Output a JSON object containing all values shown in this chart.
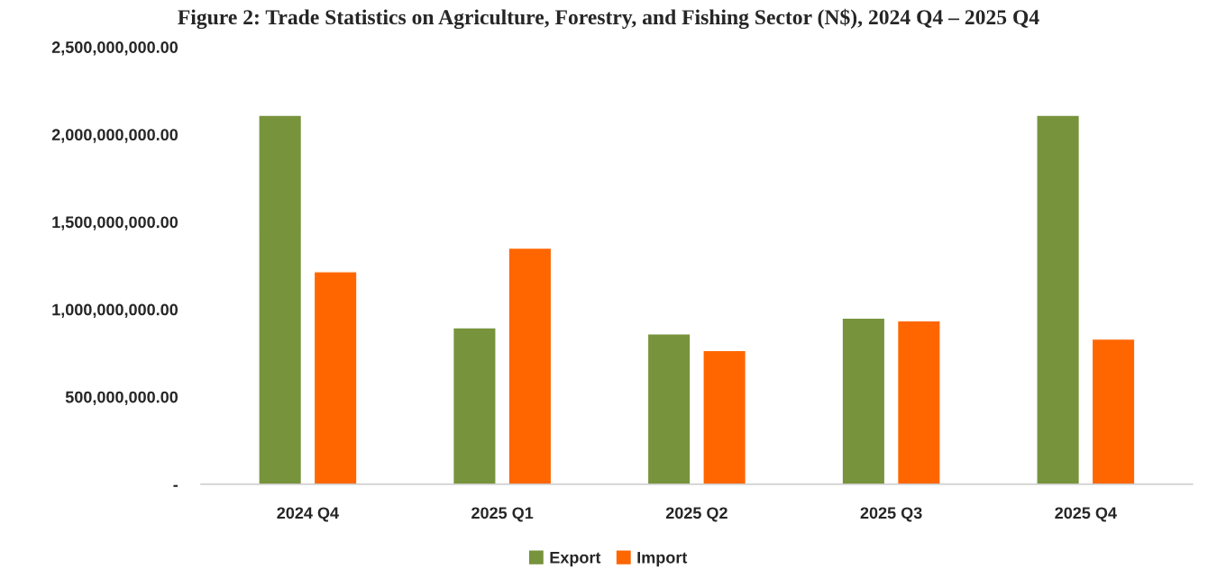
{
  "chart_data": {
    "type": "bar",
    "title": "Figure 2: Trade Statistics on Agriculture, Forestry, and Fishing Sector (N$), 2024 Q4 – 2025 Q4",
    "categories": [
      "2024 Q4",
      "2025 Q1",
      "2025 Q2",
      "2025 Q3",
      "2025 Q4"
    ],
    "series": [
      {
        "name": "Export",
        "color": "#77933c",
        "values": [
          2110000000,
          895000000,
          860000000,
          950000000,
          2110000000
        ]
      },
      {
        "name": "Import",
        "color": "#ff6600",
        "values": [
          1215000000,
          1350000000,
          765000000,
          935000000,
          830000000
        ]
      }
    ],
    "ylim": [
      0,
      2500000000
    ],
    "yticks": [
      {
        "value": 0,
        "label": "-"
      },
      {
        "value": 500000000,
        "label": "500,000,000.00"
      },
      {
        "value": 1000000000,
        "label": "1,000,000,000.00"
      },
      {
        "value": 1500000000,
        "label": "1,500,000,000.00"
      },
      {
        "value": 2000000000,
        "label": "2,000,000,000.00"
      },
      {
        "value": 2500000000,
        "label": "2,500,000,000.00"
      }
    ],
    "grid": false,
    "legend": "bottom"
  }
}
